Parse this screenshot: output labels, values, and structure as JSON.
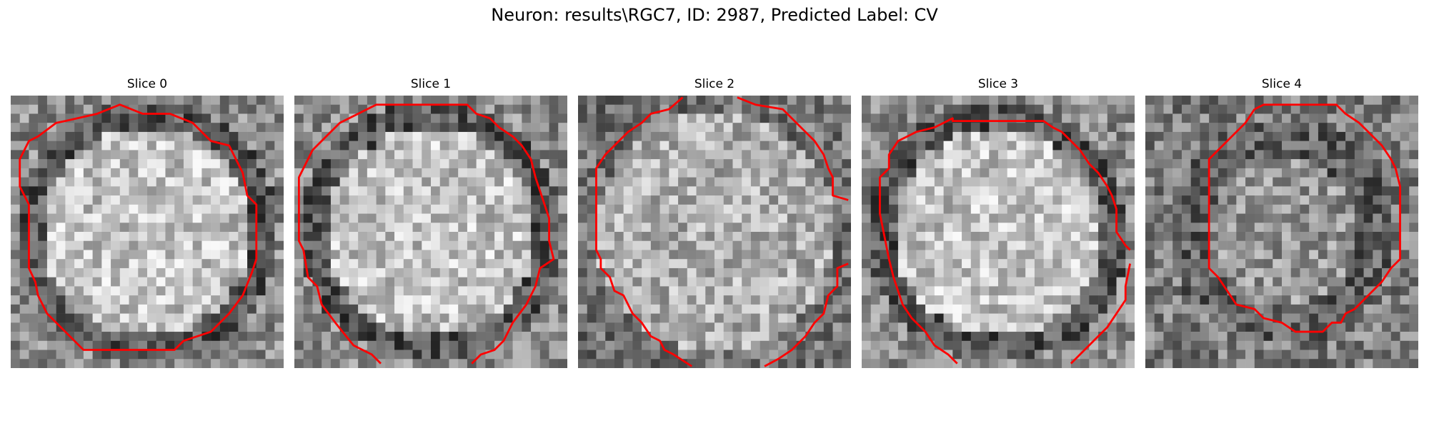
{
  "figure": {
    "title": "Neuron: results\\RGC7, ID: 2987, Predicted Label: CV",
    "contour_color": "#ff0000",
    "colormap": "gray"
  },
  "panels": [
    {
      "title": "Slice 0",
      "contour": "closed"
    },
    {
      "title": "Slice 1",
      "contour": "open-bottom"
    },
    {
      "title": "Slice 2",
      "contour": "open-top-and-bottom"
    },
    {
      "title": "Slice 3",
      "contour": "open-bottom"
    },
    {
      "title": "Slice 4",
      "contour": "closed"
    }
  ]
}
